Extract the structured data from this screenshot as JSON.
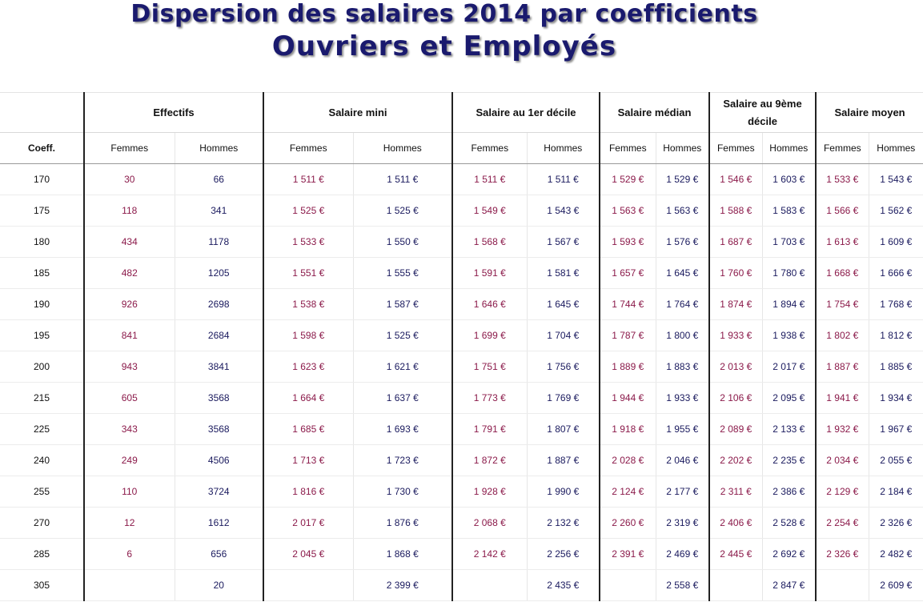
{
  "title": {
    "line1": "Dispersion des salaires 2014 par coefficients",
    "line2": "Ouvriers et Employés"
  },
  "table": {
    "coeff_header": "Coeff.",
    "groups": [
      "Effectifs",
      "Salaire mini",
      "Salaire au 1er décile",
      "Salaire médian",
      "Salaire au 9ème décile",
      "Salaire moyen"
    ],
    "sub_headers": [
      "Femmes",
      "Hommes"
    ],
    "rows": [
      [
        "170",
        "30",
        "66",
        "1 511 €",
        "1 511 €",
        "1 511 €",
        "1 511 €",
        "1 529 €",
        "1 529 €",
        "1 546 €",
        "1 603 €",
        "1 533 €",
        "1 543 €"
      ],
      [
        "175",
        "118",
        "341",
        "1 525 €",
        "1 525 €",
        "1 549 €",
        "1 543 €",
        "1 563 €",
        "1 563 €",
        "1 588 €",
        "1 583 €",
        "1 566 €",
        "1 562 €"
      ],
      [
        "180",
        "434",
        "1178",
        "1 533 €",
        "1 550 €",
        "1 568 €",
        "1 567 €",
        "1 593 €",
        "1 576 €",
        "1 687 €",
        "1 703 €",
        "1 613 €",
        "1 609 €"
      ],
      [
        "185",
        "482",
        "1205",
        "1 551 €",
        "1 555 €",
        "1 591 €",
        "1 581 €",
        "1 657 €",
        "1 645 €",
        "1 760 €",
        "1 780 €",
        "1 668 €",
        "1 666 €"
      ],
      [
        "190",
        "926",
        "2698",
        "1 538 €",
        "1 587 €",
        "1 646 €",
        "1 645 €",
        "1 744 €",
        "1 764 €",
        "1 874 €",
        "1 894 €",
        "1 754 €",
        "1 768 €"
      ],
      [
        "195",
        "841",
        "2684",
        "1 598 €",
        "1 525 €",
        "1 699 €",
        "1 704 €",
        "1 787 €",
        "1 800 €",
        "1 933 €",
        "1 938 €",
        "1 802 €",
        "1 812 €"
      ],
      [
        "200",
        "943",
        "3841",
        "1 623 €",
        "1 621 €",
        "1 751 €",
        "1 756 €",
        "1 889 €",
        "1 883 €",
        "2 013 €",
        "2 017 €",
        "1 887 €",
        "1 885 €"
      ],
      [
        "215",
        "605",
        "3568",
        "1 664 €",
        "1 637 €",
        "1 773 €",
        "1 769 €",
        "1 944 €",
        "1 933 €",
        "2 106 €",
        "2 095 €",
        "1 941 €",
        "1 934 €"
      ],
      [
        "225",
        "343",
        "3568",
        "1 685 €",
        "1 693 €",
        "1 791 €",
        "1 807 €",
        "1 918 €",
        "1 955 €",
        "2 089 €",
        "2 133 €",
        "1 932 €",
        "1 967 €"
      ],
      [
        "240",
        "249",
        "4506",
        "1 713 €",
        "1 723 €",
        "1 872 €",
        "1 887 €",
        "2 028 €",
        "2 046 €",
        "2 202 €",
        "2 235 €",
        "2 034 €",
        "2 055 €"
      ],
      [
        "255",
        "110",
        "3724",
        "1 816 €",
        "1 730 €",
        "1 928 €",
        "1 990 €",
        "2 124 €",
        "2 177 €",
        "2 311 €",
        "2 386 €",
        "2 129 €",
        "2 184 €"
      ],
      [
        "270",
        "12",
        "1612",
        "2 017 €",
        "1 876 €",
        "2 068 €",
        "2 132 €",
        "2 260 €",
        "2 319 €",
        "2 406 €",
        "2 528 €",
        "2 254 €",
        "2 326 €"
      ],
      [
        "285",
        "6",
        "656",
        "2 045 €",
        "1 868 €",
        "2 142 €",
        "2 256 €",
        "2 391 €",
        "2 469 €",
        "2 445 €",
        "2 692 €",
        "2 326 €",
        "2 482 €"
      ],
      [
        "305",
        "",
        "20",
        "",
        "2 399 €",
        "",
        "2 435 €",
        "",
        "2 558 €",
        "",
        "2 847 €",
        "",
        "2 609 €"
      ]
    ]
  },
  "colors": {
    "title": "#1a1a6e",
    "femmes": "#8b1a4a",
    "hommes": "#1a1a5e"
  }
}
